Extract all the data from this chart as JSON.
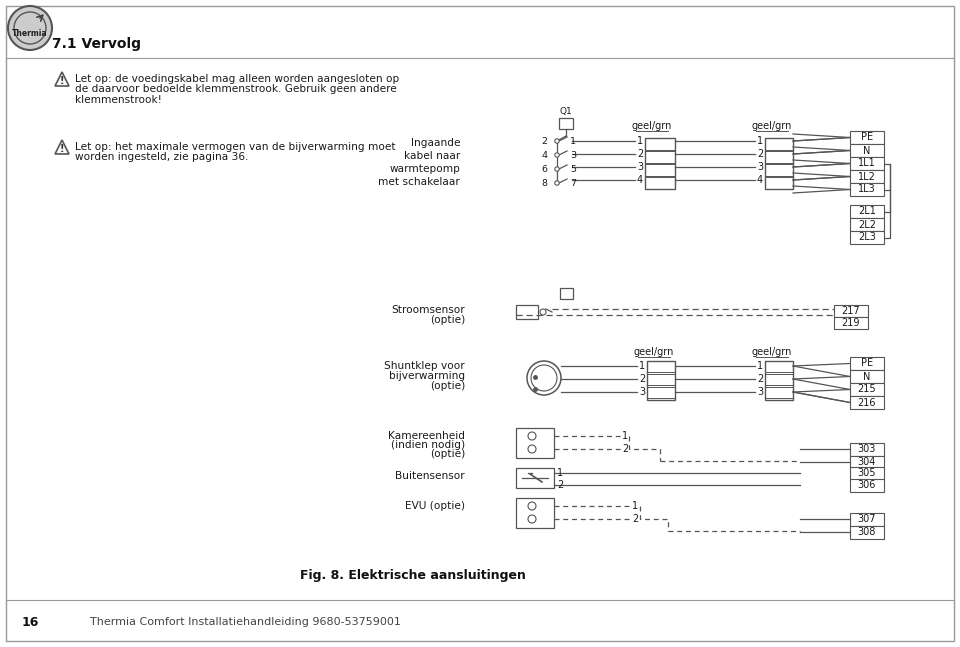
{
  "bg_color": "#ffffff",
  "line_color": "#555555",
  "text_color": "#1a1a1a",
  "page_title": "7.1 Vervolg",
  "page_number": "16",
  "footer_text": "Thermia Comfort Installatiehandleiding 9680-53759001",
  "fig_caption": "Fig. 8. Elektrische aansluitingen",
  "warning1_lines": [
    "Let op: de voedingskabel mag alleen worden aangesloten op",
    "de daarvoor bedoelde klemmenstrook. Gebruik geen andere",
    "klemmenstrook!"
  ],
  "warning2_lines": [
    "Let op: het maximale vermogen van de bijverwarming moet",
    "worden ingesteld, zie pagina 36."
  ],
  "ingaande_label": [
    "Ingaande",
    "kabel naar",
    "warmtepomp",
    "met schakelaar"
  ],
  "switch_left_nums": [
    "2",
    "4",
    "6",
    "8"
  ],
  "switch_right_nums": [
    "1",
    "3",
    "5",
    "7"
  ],
  "geel_grn": "geel/grn",
  "connector1_nums": [
    "1",
    "2",
    "3",
    "4"
  ],
  "connector2_nums": [
    "1",
    "2",
    "3",
    "4"
  ],
  "right_labels_top": [
    "PE",
    "N",
    "1L1",
    "1L2",
    "1L3"
  ],
  "right_labels_bot": [
    "2L1",
    "2L2",
    "2L3"
  ],
  "stroomsensor_label": [
    "Stroomsensor",
    "(optie)"
  ],
  "stroomsensor_nums": [
    "217",
    "219"
  ],
  "shunt_label": [
    "Shuntklep voor",
    "bijverwarming",
    "(optie)"
  ],
  "shunt_right_labels": [
    "PE",
    "N",
    "215",
    "216"
  ],
  "kamer_label": [
    "Kamereenheid",
    "(indien nodig)",
    "(optie)"
  ],
  "kamer_right_labels": [
    "303",
    "304"
  ],
  "buiten_label": "Buitensensor",
  "buiten_right_labels": [
    "305",
    "306"
  ],
  "evu_label": "EVU (optie)",
  "evu_right_labels": [
    "307",
    "308"
  ]
}
